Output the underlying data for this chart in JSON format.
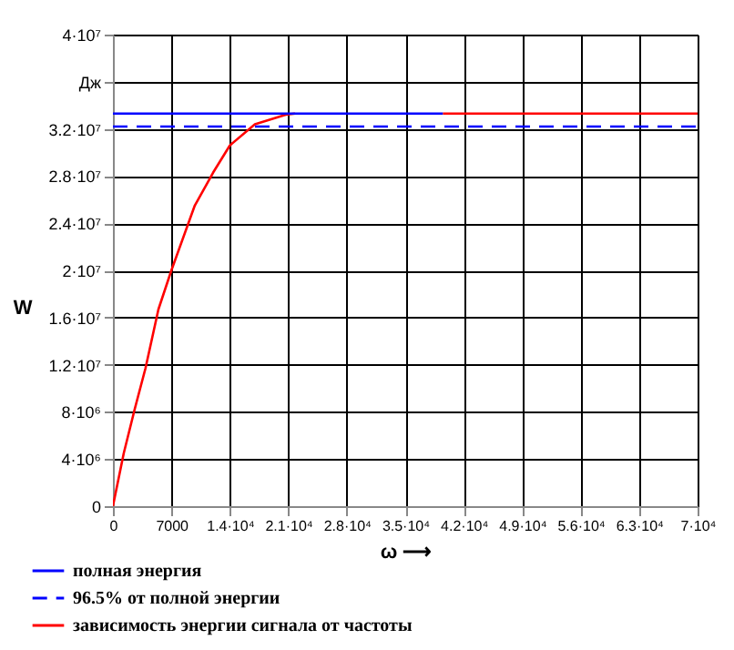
{
  "chart_data": {
    "type": "line",
    "xlabel": "ω ⟶",
    "ylabel": "W",
    "xlim": [
      0,
      70000
    ],
    "xticks": [
      0,
      7000,
      {
        "value": 14000,
        "label": "1.4·10⁴"
      },
      {
        "value": 21000,
        "label": "2.1·10⁴"
      },
      {
        "value": 28000,
        "label": "2.8·10⁴"
      },
      {
        "value": 35000,
        "label": "3.5·10⁴"
      },
      {
        "value": 42000,
        "label": "4.2·10⁴"
      },
      {
        "value": 49000,
        "label": "4.9·10⁴"
      },
      {
        "value": 56000,
        "label": "5.6·10⁴"
      },
      {
        "value": 63000,
        "label": "6.3·10⁴"
      },
      {
        "value": 70000,
        "label": "7·10⁴"
      }
    ],
    "ylim": [
      0,
      40000000
    ],
    "yticks": [
      0,
      {
        "value": 4000000,
        "label": "4·10⁶"
      },
      {
        "value": 8000000,
        "label": "8·10⁶"
      },
      {
        "value": 12000000,
        "label": "1.2·10⁷"
      },
      {
        "value": 16000000,
        "label": "1.6·10⁷"
      },
      {
        "value": 20000000,
        "label": "2·10⁷"
      },
      {
        "value": 24000000,
        "label": "2.4·10⁷"
      },
      {
        "value": 28000000,
        "label": "2.8·10⁷"
      },
      {
        "value": 32000000,
        "label": "3.2·10⁷"
      },
      {
        "value": 36000000,
        "label": "Дж"
      },
      {
        "value": 40000000,
        "label": "4·10⁷"
      }
    ],
    "grid": true,
    "legend": "bottom left",
    "series": [
      {
        "name": "полная энергия",
        "color": "#0000ff",
        "line_style": "solid",
        "x": [
          0,
          39500
        ],
        "values": [
          33300000,
          33300000
        ]
      },
      {
        "name": "96.5% от полной энергии",
        "color": "#0000ff",
        "line_style": "dashed",
        "x": [
          0,
          70000
        ],
        "values": [
          32200000,
          32200000
        ]
      },
      {
        "name": "зависимость энергии сигнала от частоты",
        "color": "#ff0000",
        "line_style": "solid",
        "x": [
          0,
          1300,
          2600,
          3900,
          5450,
          7000,
          9800,
          12000,
          14000,
          17000,
          20700,
          21800,
          30000,
          39500,
          70000
        ],
        "values": [
          0,
          4500000,
          8200000,
          11700000,
          16700000,
          20000000,
          25500000,
          28300000,
          30600000,
          32400000,
          33200000,
          33300000,
          null,
          33300000,
          33300000
        ]
      }
    ]
  }
}
